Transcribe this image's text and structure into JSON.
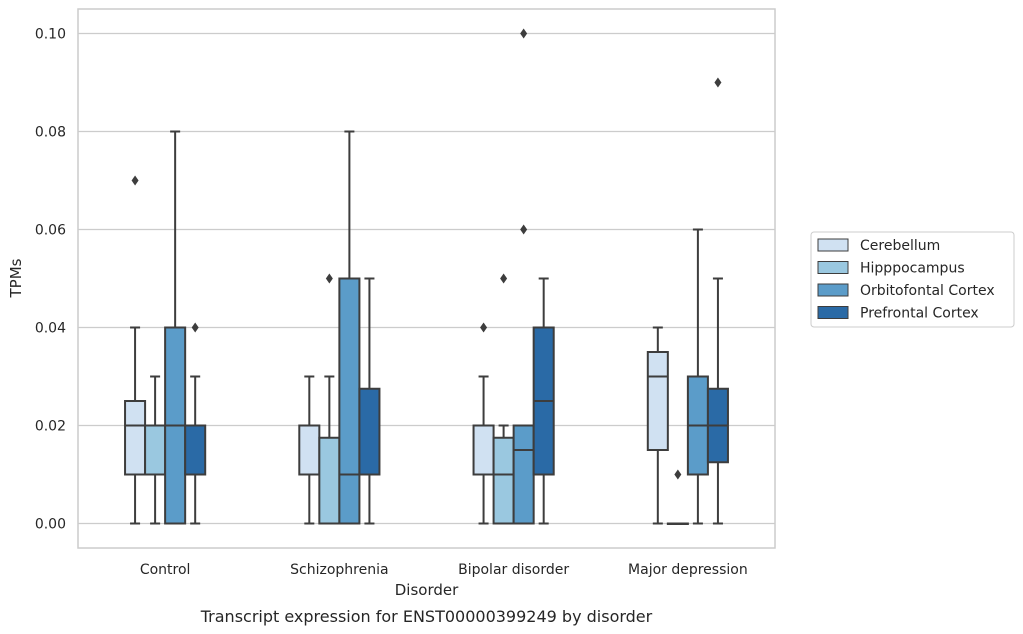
{
  "chart_data": {
    "type": "boxplot",
    "title": "",
    "caption": "Transcript expression for ENST00000399249 by disorder",
    "xlabel": "Disorder",
    "ylabel": "TPMs",
    "ylim": [
      -0.005,
      0.105
    ],
    "yticks": [
      "0.00",
      "0.02",
      "0.04",
      "0.06",
      "0.08",
      "0.10"
    ],
    "grid": "horizontal",
    "legend_position": "right",
    "categories": [
      "Control",
      "Schizophrenia",
      "Bipolar disorder",
      "Major depression"
    ],
    "series": [
      {
        "name": "Cerebellum",
        "color": "#d0e1f2",
        "boxes": [
          {
            "whislo": 0.0,
            "q1": 0.01,
            "med": 0.02,
            "q3": 0.025,
            "whishi": 0.04,
            "fliers": [
              0.07
            ]
          },
          {
            "whislo": 0.0,
            "q1": 0.01,
            "med": 0.02,
            "q3": 0.02,
            "whishi": 0.03,
            "fliers": []
          },
          {
            "whislo": 0.0,
            "q1": 0.01,
            "med": 0.02,
            "q3": 0.02,
            "whishi": 0.03,
            "fliers": [
              0.04
            ]
          },
          {
            "whislo": 0.0,
            "q1": 0.015,
            "med": 0.03,
            "q3": 0.035,
            "whishi": 0.04,
            "fliers": []
          }
        ]
      },
      {
        "name": "Hipppocampus",
        "color": "#9ac8e0",
        "boxes": [
          {
            "whislo": 0.0,
            "q1": 0.01,
            "med": 0.02,
            "q3": 0.02,
            "whishi": 0.03,
            "fliers": []
          },
          {
            "whislo": 0.0,
            "q1": 0.0,
            "med": 0.0,
            "q3": 0.0175,
            "whishi": 0.03,
            "fliers": [
              0.05
            ]
          },
          {
            "whislo": 0.0,
            "q1": 0.0,
            "med": 0.01,
            "q3": 0.0175,
            "whishi": 0.02,
            "fliers": [
              0.05
            ]
          },
          {
            "whislo": 0.0,
            "q1": 0.0,
            "med": 0.0,
            "q3": 0.0,
            "whishi": 0.0,
            "fliers": [
              0.01
            ]
          }
        ]
      },
      {
        "name": "Orbitofontal Cortex",
        "color": "#5b9cc9",
        "boxes": [
          {
            "whislo": 0.0,
            "q1": 0.0,
            "med": 0.02,
            "q3": 0.04,
            "whishi": 0.08,
            "fliers": []
          },
          {
            "whislo": 0.0,
            "q1": 0.0,
            "med": 0.01,
            "q3": 0.05,
            "whishi": 0.08,
            "fliers": []
          },
          {
            "whislo": 0.0,
            "q1": 0.0,
            "med": 0.015,
            "q3": 0.02,
            "whishi": 0.02,
            "fliers": [
              0.06,
              0.1
            ]
          },
          {
            "whislo": 0.0,
            "q1": 0.01,
            "med": 0.02,
            "q3": 0.03,
            "whishi": 0.06,
            "fliers": []
          }
        ]
      },
      {
        "name": "Prefrontal Cortex",
        "color": "#2a6aa6",
        "boxes": [
          {
            "whislo": 0.0,
            "q1": 0.01,
            "med": 0.02,
            "q3": 0.02,
            "whishi": 0.03,
            "fliers": [
              0.04
            ]
          },
          {
            "whislo": 0.0,
            "q1": 0.01,
            "med": 0.01,
            "q3": 0.0275,
            "whishi": 0.05,
            "fliers": []
          },
          {
            "whislo": 0.0,
            "q1": 0.01,
            "med": 0.025,
            "q3": 0.04,
            "whishi": 0.05,
            "fliers": []
          },
          {
            "whislo": 0.0,
            "q1": 0.0125,
            "med": 0.02,
            "q3": 0.0275,
            "whishi": 0.05,
            "fliers": [
              0.09
            ]
          }
        ]
      }
    ]
  }
}
